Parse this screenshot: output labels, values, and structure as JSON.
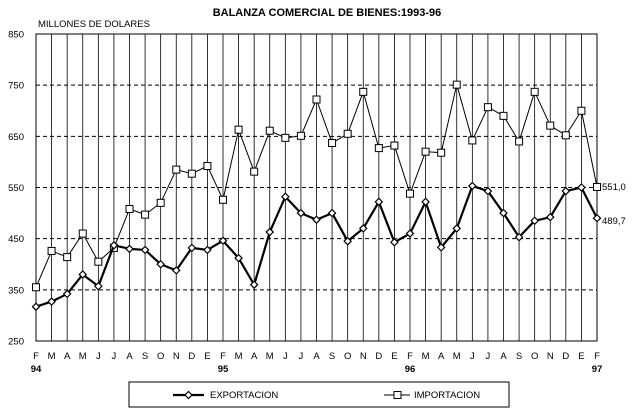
{
  "chart_data": {
    "type": "line",
    "title": "BALANZA COMERCIAL DE BIENES:1993-96",
    "ylabel": "MILLONES DE DOLARES",
    "ylim": [
      250,
      850
    ],
    "yticks": [
      250,
      350,
      450,
      550,
      650,
      750,
      850
    ],
    "categories": [
      "F",
      "M",
      "A",
      "M",
      "J",
      "J",
      "A",
      "S",
      "O",
      "N",
      "D",
      "E",
      "F",
      "M",
      "A",
      "M",
      "J",
      "J",
      "A",
      "S",
      "O",
      "N",
      "D",
      "E",
      "F",
      "M",
      "A",
      "M",
      "J",
      "J",
      "A",
      "S",
      "O",
      "N",
      "D",
      "E",
      "F"
    ],
    "year_labels": [
      {
        "index": 0,
        "label": "94"
      },
      {
        "index": 12,
        "label": "95"
      },
      {
        "index": 24,
        "label": "96"
      },
      {
        "index": 36,
        "label": "97"
      }
    ],
    "grid": {
      "horizontal": "dashed",
      "vertical": "solid"
    },
    "legend_position": "bottom",
    "series": [
      {
        "name": "EXPORTACION",
        "marker": "diamond",
        "values": [
          317,
          327,
          342,
          380,
          357,
          437,
          430,
          428,
          400,
          388,
          432,
          428,
          446,
          412,
          360,
          463,
          532,
          500,
          487,
          500,
          445,
          470,
          522,
          443,
          460,
          522,
          433,
          470,
          553,
          543,
          500,
          453,
          485,
          492,
          543,
          550,
          490
        ]
      },
      {
        "name": "IMPORTACION",
        "marker": "square",
        "values": [
          355,
          426,
          414,
          460,
          405,
          432,
          508,
          497,
          520,
          585,
          577,
          592,
          526,
          663,
          581,
          661,
          647,
          651,
          722,
          637,
          655,
          737,
          627,
          632,
          538,
          620,
          618,
          751,
          642,
          707,
          690,
          640,
          737,
          671,
          652,
          700,
          551
        ]
      }
    ],
    "end_labels": [
      "551,0",
      "489,7"
    ]
  }
}
